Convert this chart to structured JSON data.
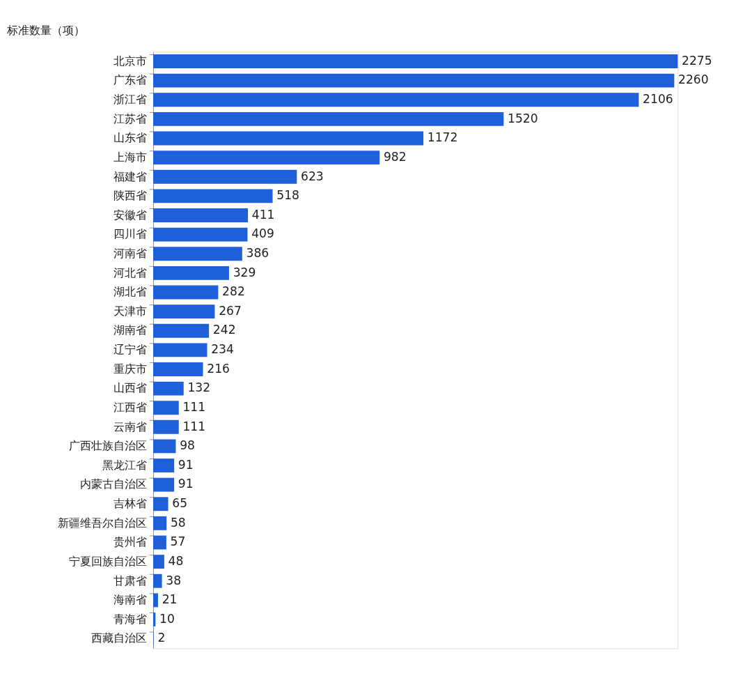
{
  "chart_data": {
    "type": "bar",
    "orientation": "horizontal",
    "title": "标准数量（项）",
    "color": "#1f5fd8",
    "data_labels": true,
    "grid": false,
    "legend": false,
    "categories": [
      "北京市",
      "广东省",
      "浙江省",
      "江苏省",
      "山东省",
      "上海市",
      "福建省",
      "陕西省",
      "安徽省",
      "四川省",
      "河南省",
      "河北省",
      "湖北省",
      "天津市",
      "湖南省",
      "辽宁省",
      "重庆市",
      "山西省",
      "江西省",
      "云南省",
      "广西壮族自治区",
      "黑龙江省",
      "内蒙古自治区",
      "吉林省",
      "新疆维吾尔自治区",
      "贵州省",
      "宁夏回族自治区",
      "甘肃省",
      "海南省",
      "青海省",
      "西藏自治区"
    ],
    "values": [
      2275,
      2260,
      2106,
      1520,
      1172,
      982,
      623,
      518,
      411,
      409,
      386,
      329,
      282,
      267,
      242,
      234,
      216,
      132,
      111,
      111,
      98,
      91,
      91,
      65,
      58,
      57,
      48,
      38,
      21,
      10,
      2
    ]
  }
}
